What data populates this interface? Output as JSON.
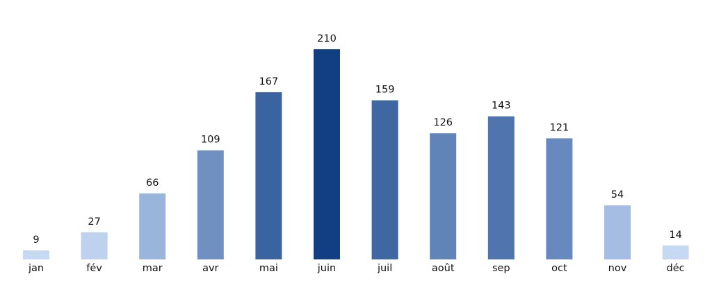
{
  "chart_data": {
    "type": "bar",
    "title": "",
    "xlabel": "",
    "ylabel": "",
    "categories": [
      "jan",
      "fév",
      "mar",
      "avr",
      "mai",
      "juin",
      "juil",
      "août",
      "sep",
      "oct",
      "nov",
      "déc"
    ],
    "values": [
      9,
      27,
      66,
      109,
      167,
      210,
      159,
      126,
      143,
      121,
      54,
      14
    ],
    "ylim": [
      0,
      210
    ],
    "grid": false,
    "legend": "none",
    "colors": [
      "#c6d9f2",
      "#bed2ef",
      "#9ab5dc",
      "#6f90c1",
      "#3a64a0",
      "#123f84",
      "#3f67a2",
      "#6083b8",
      "#5074ae",
      "#6789bd",
      "#a5bde2",
      "#c6d9f2"
    ]
  }
}
